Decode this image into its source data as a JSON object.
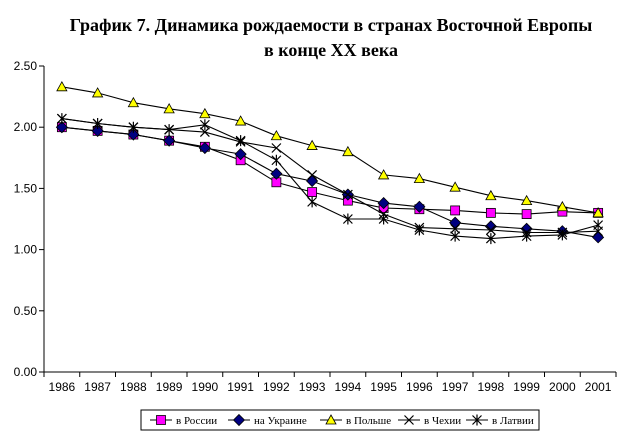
{
  "chart_data": {
    "type": "line",
    "title": "График 7. Динамика рождаемости в странах Восточной Европы",
    "subtitle": "в конце XX века",
    "xlabel": "",
    "ylabel": "",
    "x": [
      "1986",
      "1987",
      "1988",
      "1989",
      "1990",
      "1991",
      "1992",
      "1993",
      "1994",
      "1995",
      "1996",
      "1997",
      "1998",
      "1999",
      "2000",
      "2001"
    ],
    "ylim": [
      0,
      2.5
    ],
    "yticks": [
      "0.00",
      "0.50",
      "1.00",
      "1.50",
      "2.00",
      "2.50"
    ],
    "grid": false,
    "legend": "bottom",
    "series": [
      {
        "name": "в России",
        "marker": "square",
        "color": "#ff00ff",
        "values": [
          2.0,
          1.97,
          1.94,
          1.89,
          1.84,
          1.73,
          1.55,
          1.47,
          1.4,
          1.34,
          1.33,
          1.32,
          1.3,
          1.29,
          1.31,
          1.3
        ]
      },
      {
        "name": "на Украине",
        "marker": "diamond",
        "color": "#000080",
        "values": [
          2.0,
          1.97,
          1.94,
          1.89,
          1.83,
          1.78,
          1.62,
          1.56,
          1.45,
          1.38,
          1.35,
          1.22,
          1.19,
          1.17,
          1.15,
          1.1
        ]
      },
      {
        "name": "в Польше",
        "marker": "triangle",
        "color": "#ffff00",
        "values": [
          2.33,
          2.28,
          2.2,
          2.15,
          2.11,
          2.05,
          1.93,
          1.85,
          1.8,
          1.61,
          1.58,
          1.51,
          1.44,
          1.4,
          1.35,
          1.3
        ]
      },
      {
        "name": "в Чехии",
        "marker": "x",
        "color": "#000000",
        "values": [
          2.07,
          2.03,
          2.0,
          1.98,
          1.96,
          1.88,
          1.83,
          1.61,
          1.45,
          1.29,
          1.18,
          1.17,
          1.16,
          1.14,
          1.14,
          1.15
        ]
      },
      {
        "name": "в Латвии",
        "marker": "asterisk",
        "color": "#000000",
        "values": [
          2.07,
          2.03,
          2.0,
          1.98,
          2.02,
          1.89,
          1.73,
          1.39,
          1.25,
          1.25,
          1.16,
          1.11,
          1.09,
          1.11,
          1.12,
          1.2
        ]
      }
    ]
  }
}
